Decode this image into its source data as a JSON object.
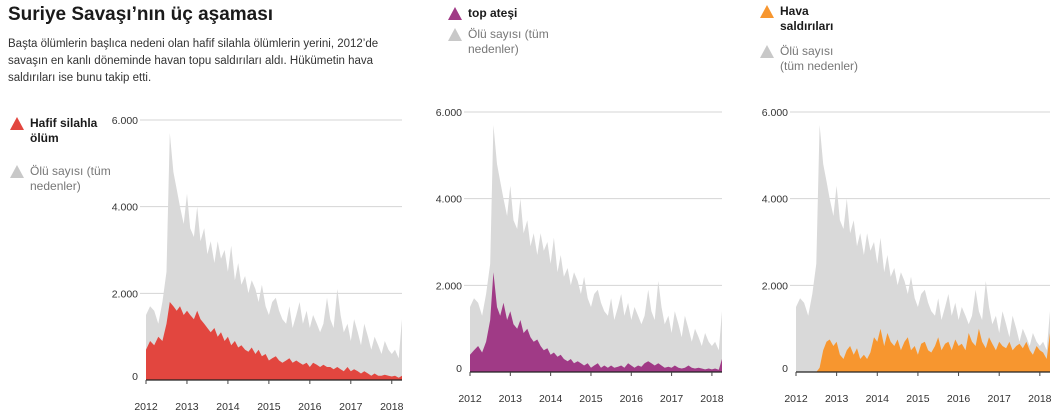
{
  "header": {
    "title": "Suriye Savaşı’nın üç aşaması",
    "subtitle": "Başta ölümlerin başlıca nedeni olan hafif silahla ölümlerin yerini, 2012’de savaşın en kanlı döneminde havan topu saldırıları aldı. Hükümetin hava saldırıları ise bunu takip etti."
  },
  "colors": {
    "grey": "#d9d9d9",
    "grey_tri": "#c8c8c8",
    "red": "#e2463f",
    "purple": "#a03a86",
    "orange": "#f7962f"
  },
  "chart_data": [
    {
      "type": "area",
      "legend": [
        "Hafif silahla ölüm",
        "Ölü sayısı (tüm nedenler)"
      ],
      "y_ticks": [
        "6.000",
        "4.000",
        "2.000",
        "0"
      ],
      "x_ticks": [
        "2012",
        "2013",
        "2014",
        "2015",
        "2016",
        "2017",
        "2018"
      ],
      "ylim": [
        0,
        6000
      ],
      "xlim": [
        2012.0,
        2018.25
      ],
      "grid": true,
      "series": [
        {
          "name": "Ölü sayısı (tüm nedenler)",
          "x": [
            2012.0,
            2012.1,
            2012.2,
            2012.3,
            2012.4,
            2012.5,
            2012.58,
            2012.67,
            2012.75,
            2012.83,
            2012.92,
            2013.0,
            2013.08,
            2013.17,
            2013.25,
            2013.33,
            2013.42,
            2013.5,
            2013.58,
            2013.67,
            2013.75,
            2013.83,
            2013.92,
            2014.0,
            2014.08,
            2014.17,
            2014.25,
            2014.33,
            2014.42,
            2014.5,
            2014.58,
            2014.67,
            2014.75,
            2014.83,
            2014.92,
            2015.0,
            2015.08,
            2015.17,
            2015.25,
            2015.33,
            2015.42,
            2015.5,
            2015.58,
            2015.67,
            2015.75,
            2015.83,
            2015.92,
            2016.0,
            2016.08,
            2016.17,
            2016.25,
            2016.33,
            2016.42,
            2016.5,
            2016.58,
            2016.67,
            2016.75,
            2016.83,
            2016.92,
            2017.0,
            2017.08,
            2017.17,
            2017.25,
            2017.33,
            2017.42,
            2017.5,
            2017.58,
            2017.67,
            2017.75,
            2017.83,
            2017.92,
            2018.0,
            2018.08,
            2018.17,
            2018.25
          ],
          "values": [
            1500,
            1700,
            1600,
            1300,
            1800,
            2500,
            5700,
            4800,
            4400,
            4000,
            3600,
            4300,
            3500,
            3300,
            4000,
            3200,
            3500,
            2900,
            3200,
            2700,
            3200,
            2800,
            3000,
            2500,
            3100,
            2300,
            2700,
            2200,
            2400,
            2000,
            2300,
            2100,
            1800,
            2200,
            1700,
            1500,
            1800,
            1900,
            1600,
            1400,
            1300,
            1700,
            1200,
            1500,
            1800,
            1300,
            1600,
            1200,
            1500,
            1300,
            1100,
            1300,
            1900,
            1400,
            1200,
            2100,
            1500,
            1100,
            1300,
            900,
            1400,
            1100,
            800,
            1300,
            1000,
            700,
            1000,
            800,
            600,
            900,
            700,
            600,
            700,
            500,
            1400
          ]
        },
        {
          "name": "Hafif silahla ölüm",
          "x": [
            2012.0,
            2012.1,
            2012.2,
            2012.3,
            2012.4,
            2012.5,
            2012.58,
            2012.67,
            2012.75,
            2012.83,
            2012.92,
            2013.0,
            2013.08,
            2013.17,
            2013.25,
            2013.33,
            2013.42,
            2013.5,
            2013.58,
            2013.67,
            2013.75,
            2013.83,
            2013.92,
            2014.0,
            2014.08,
            2014.17,
            2014.25,
            2014.33,
            2014.42,
            2014.5,
            2014.58,
            2014.67,
            2014.75,
            2014.83,
            2014.92,
            2015.0,
            2015.08,
            2015.17,
            2015.25,
            2015.33,
            2015.42,
            2015.5,
            2015.58,
            2015.67,
            2015.75,
            2015.83,
            2015.92,
            2016.0,
            2016.08,
            2016.17,
            2016.25,
            2016.33,
            2016.42,
            2016.5,
            2016.58,
            2016.67,
            2016.75,
            2016.83,
            2016.92,
            2017.0,
            2017.08,
            2017.17,
            2017.25,
            2017.33,
            2017.42,
            2017.5,
            2017.58,
            2017.67,
            2017.75,
            2017.83,
            2017.92,
            2018.0,
            2018.08,
            2018.17,
            2018.25
          ],
          "values": [
            700,
            900,
            800,
            1000,
            900,
            1300,
            1800,
            1700,
            1600,
            1700,
            1500,
            1600,
            1500,
            1400,
            1600,
            1400,
            1300,
            1200,
            1100,
            1200,
            1000,
            1100,
            900,
            1000,
            800,
            900,
            750,
            800,
            700,
            650,
            750,
            600,
            700,
            550,
            600,
            450,
            500,
            550,
            450,
            400,
            450,
            500,
            400,
            450,
            400,
            350,
            400,
            300,
            400,
            350,
            300,
            350,
            300,
            300,
            250,
            300,
            250,
            200,
            300,
            200,
            250,
            200,
            150,
            200,
            150,
            100,
            150,
            100,
            100,
            120,
            100,
            80,
            100,
            50,
            100
          ]
        }
      ]
    },
    {
      "type": "area",
      "legend": [
        "top ateşi",
        "Ölü sayısı (tüm nedenler)"
      ],
      "y_ticks": [
        "6.000",
        "4.000",
        "2.000",
        "0"
      ],
      "x_ticks": [
        "2012",
        "2013",
        "2014",
        "2015",
        "2016",
        "2017",
        "2018"
      ],
      "ylim": [
        0,
        6000
      ],
      "xlim": [
        2012.0,
        2018.25
      ],
      "grid": true,
      "series": [
        {
          "name": "Ölü sayısı (tüm nedenler)",
          "x": [
            2012.0,
            2012.1,
            2012.2,
            2012.3,
            2012.4,
            2012.5,
            2012.58,
            2012.67,
            2012.75,
            2012.83,
            2012.92,
            2013.0,
            2013.08,
            2013.17,
            2013.25,
            2013.33,
            2013.42,
            2013.5,
            2013.58,
            2013.67,
            2013.75,
            2013.83,
            2013.92,
            2014.0,
            2014.08,
            2014.17,
            2014.25,
            2014.33,
            2014.42,
            2014.5,
            2014.58,
            2014.67,
            2014.75,
            2014.83,
            2014.92,
            2015.0,
            2015.08,
            2015.17,
            2015.25,
            2015.33,
            2015.42,
            2015.5,
            2015.58,
            2015.67,
            2015.75,
            2015.83,
            2015.92,
            2016.0,
            2016.08,
            2016.17,
            2016.25,
            2016.33,
            2016.42,
            2016.5,
            2016.58,
            2016.67,
            2016.75,
            2016.83,
            2016.92,
            2017.0,
            2017.08,
            2017.17,
            2017.25,
            2017.33,
            2017.42,
            2017.5,
            2017.58,
            2017.67,
            2017.75,
            2017.83,
            2017.92,
            2018.0,
            2018.08,
            2018.17,
            2018.25
          ],
          "values": [
            1500,
            1700,
            1600,
            1300,
            1800,
            2500,
            5700,
            4800,
            4400,
            4000,
            3600,
            4300,
            3500,
            3300,
            4000,
            3200,
            3500,
            2900,
            3200,
            2700,
            3200,
            2800,
            3000,
            2500,
            3100,
            2300,
            2700,
            2200,
            2400,
            2000,
            2300,
            2100,
            1800,
            2200,
            1700,
            1500,
            1800,
            1900,
            1600,
            1400,
            1300,
            1700,
            1200,
            1500,
            1800,
            1300,
            1600,
            1200,
            1500,
            1300,
            1100,
            1300,
            1900,
            1400,
            1200,
            2100,
            1500,
            1100,
            1300,
            900,
            1400,
            1100,
            800,
            1300,
            1000,
            700,
            1000,
            800,
            600,
            900,
            700,
            600,
            700,
            500,
            1400
          ]
        },
        {
          "name": "top ateşi",
          "x": [
            2012.0,
            2012.1,
            2012.2,
            2012.3,
            2012.4,
            2012.5,
            2012.58,
            2012.67,
            2012.75,
            2012.83,
            2012.92,
            2013.0,
            2013.08,
            2013.17,
            2013.25,
            2013.33,
            2013.42,
            2013.5,
            2013.58,
            2013.67,
            2013.75,
            2013.83,
            2013.92,
            2014.0,
            2014.08,
            2014.17,
            2014.25,
            2014.33,
            2014.42,
            2014.5,
            2014.58,
            2014.67,
            2014.75,
            2014.83,
            2014.92,
            2015.0,
            2015.08,
            2015.17,
            2015.25,
            2015.33,
            2015.42,
            2015.5,
            2015.58,
            2015.67,
            2015.75,
            2015.83,
            2015.92,
            2016.0,
            2016.08,
            2016.17,
            2016.25,
            2016.33,
            2016.42,
            2016.5,
            2016.58,
            2016.67,
            2016.75,
            2016.83,
            2016.92,
            2017.0,
            2017.08,
            2017.17,
            2017.25,
            2017.33,
            2017.42,
            2017.5,
            2017.58,
            2017.67,
            2017.75,
            2017.83,
            2017.92,
            2018.0,
            2018.08,
            2018.17,
            2018.25
          ],
          "values": [
            400,
            500,
            600,
            450,
            700,
            1200,
            2300,
            1500,
            1300,
            1600,
            1200,
            1400,
            1100,
            1000,
            1200,
            900,
            1000,
            800,
            700,
            750,
            600,
            500,
            550,
            400,
            450,
            350,
            400,
            300,
            250,
            300,
            200,
            250,
            200,
            150,
            200,
            100,
            150,
            200,
            100,
            150,
            100,
            150,
            100,
            120,
            150,
            100,
            200,
            150,
            100,
            150,
            120,
            200,
            250,
            200,
            150,
            200,
            150,
            100,
            120,
            100,
            150,
            100,
            80,
            100,
            150,
            100,
            80,
            100,
            80,
            60,
            80,
            60,
            80,
            50,
            300
          ]
        }
      ]
    },
    {
      "type": "area",
      "legend": [
        "Hava saldırıları",
        "Ölü sayısı (tüm nedenler)"
      ],
      "y_ticks": [
        "6.000",
        "4.000",
        "2.000",
        "0"
      ],
      "x_ticks": [
        "2012",
        "2013",
        "2014",
        "2015",
        "2016",
        "2017",
        "2018"
      ],
      "ylim": [
        0,
        6000
      ],
      "xlim": [
        2012.0,
        2018.25
      ],
      "grid": true,
      "series": [
        {
          "name": "Ölü sayısı (tüm nedenler)",
          "x": [
            2012.0,
            2012.1,
            2012.2,
            2012.3,
            2012.4,
            2012.5,
            2012.58,
            2012.67,
            2012.75,
            2012.83,
            2012.92,
            2013.0,
            2013.08,
            2013.17,
            2013.25,
            2013.33,
            2013.42,
            2013.5,
            2013.58,
            2013.67,
            2013.75,
            2013.83,
            2013.92,
            2014.0,
            2014.08,
            2014.17,
            2014.25,
            2014.33,
            2014.42,
            2014.5,
            2014.58,
            2014.67,
            2014.75,
            2014.83,
            2014.92,
            2015.0,
            2015.08,
            2015.17,
            2015.25,
            2015.33,
            2015.42,
            2015.5,
            2015.58,
            2015.67,
            2015.75,
            2015.83,
            2015.92,
            2016.0,
            2016.08,
            2016.17,
            2016.25,
            2016.33,
            2016.42,
            2016.5,
            2016.58,
            2016.67,
            2016.75,
            2016.83,
            2016.92,
            2017.0,
            2017.08,
            2017.17,
            2017.25,
            2017.33,
            2017.42,
            2017.5,
            2017.58,
            2017.67,
            2017.75,
            2017.83,
            2017.92,
            2018.0,
            2018.08,
            2018.17,
            2018.25
          ],
          "values": [
            1500,
            1700,
            1600,
            1300,
            1800,
            2500,
            5700,
            4800,
            4400,
            4000,
            3600,
            4300,
            3500,
            3300,
            4000,
            3200,
            3500,
            2900,
            3200,
            2700,
            3200,
            2800,
            3000,
            2500,
            3100,
            2300,
            2700,
            2200,
            2400,
            2000,
            2300,
            2100,
            1800,
            2200,
            1700,
            1500,
            1800,
            1900,
            1600,
            1400,
            1300,
            1700,
            1200,
            1500,
            1800,
            1300,
            1600,
            1200,
            1500,
            1300,
            1100,
            1300,
            1900,
            1400,
            1200,
            2100,
            1500,
            1100,
            1300,
            900,
            1400,
            1100,
            800,
            1300,
            1000,
            700,
            1000,
            800,
            600,
            900,
            700,
            600,
            700,
            500,
            1400
          ]
        },
        {
          "name": "Hava saldırıları",
          "x": [
            2012.0,
            2012.1,
            2012.2,
            2012.3,
            2012.4,
            2012.5,
            2012.58,
            2012.67,
            2012.75,
            2012.83,
            2012.92,
            2013.0,
            2013.08,
            2013.17,
            2013.25,
            2013.33,
            2013.42,
            2013.5,
            2013.58,
            2013.67,
            2013.75,
            2013.83,
            2013.92,
            2014.0,
            2014.08,
            2014.17,
            2014.25,
            2014.33,
            2014.42,
            2014.5,
            2014.58,
            2014.67,
            2014.75,
            2014.83,
            2014.92,
            2015.0,
            2015.08,
            2015.17,
            2015.25,
            2015.33,
            2015.42,
            2015.5,
            2015.58,
            2015.67,
            2015.75,
            2015.83,
            2015.92,
            2016.0,
            2016.08,
            2016.17,
            2016.25,
            2016.33,
            2016.42,
            2016.5,
            2016.58,
            2016.67,
            2016.75,
            2016.83,
            2016.92,
            2017.0,
            2017.08,
            2017.17,
            2017.25,
            2017.33,
            2017.42,
            2017.5,
            2017.58,
            2017.67,
            2017.75,
            2017.83,
            2017.92,
            2018.0,
            2018.08,
            2018.17,
            2018.25
          ],
          "values": [
            0,
            0,
            0,
            0,
            0,
            0,
            100,
            500,
            700,
            750,
            600,
            700,
            400,
            300,
            500,
            600,
            400,
            550,
            300,
            400,
            300,
            450,
            800,
            700,
            1000,
            600,
            900,
            700,
            600,
            750,
            500,
            700,
            800,
            500,
            600,
            400,
            650,
            700,
            500,
            450,
            600,
            800,
            500,
            650,
            700,
            500,
            750,
            600,
            650,
            500,
            900,
            700,
            600,
            1000,
            700,
            550,
            800,
            650,
            500,
            700,
            600,
            550,
            700,
            500,
            600,
            650,
            550,
            700,
            500,
            400,
            600,
            500,
            450,
            300,
            900
          ]
        }
      ]
    }
  ]
}
